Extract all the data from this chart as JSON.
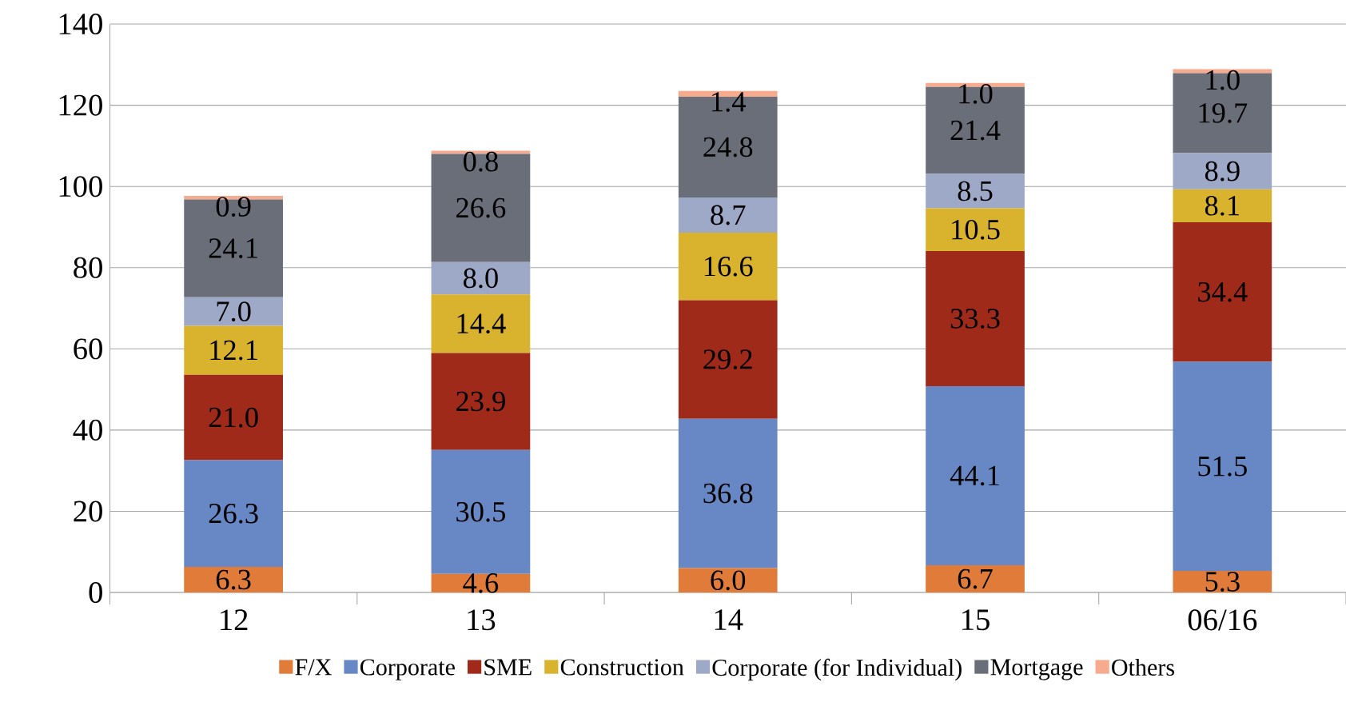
{
  "chart_data": {
    "type": "bar",
    "stacked": true,
    "categories": [
      "12",
      "13",
      "14",
      "15",
      "06/16"
    ],
    "series": [
      {
        "name": "F/X",
        "color": "#e07b39",
        "values": [
          6.3,
          4.6,
          6.0,
          6.7,
          5.3
        ],
        "value_labels": [
          "6.3",
          "4.6",
          "6.0",
          "6.7",
          "5.3"
        ]
      },
      {
        "name": "Corporate",
        "color": "#6788c4",
        "values": [
          26.3,
          30.5,
          36.8,
          44.1,
          51.5
        ],
        "value_labels": [
          "26.3",
          "30.5",
          "36.8",
          "44.1",
          "51.5"
        ]
      },
      {
        "name": "SME",
        "color": "#a02a1a",
        "values": [
          21.0,
          23.9,
          29.2,
          33.3,
          34.4
        ],
        "value_labels": [
          "21.0",
          "23.9",
          "29.2",
          "33.3",
          "34.4"
        ]
      },
      {
        "name": "Construction",
        "color": "#d9b22e",
        "values": [
          12.1,
          14.4,
          16.6,
          10.5,
          8.1
        ],
        "value_labels": [
          "12.1",
          "14.4",
          "16.6",
          "10.5",
          "8.1"
        ]
      },
      {
        "name": "Corporate (for Individual)",
        "color": "#9ea9c8",
        "values": [
          7.0,
          8.0,
          8.7,
          8.5,
          8.9
        ],
        "value_labels": [
          "7.0",
          "8.0",
          "8.7",
          "8.5",
          "8.9"
        ]
      },
      {
        "name": "Mortgage",
        "color": "#6a6e78",
        "values": [
          24.1,
          26.6,
          24.8,
          21.4,
          19.7
        ],
        "value_labels": [
          "24.1",
          "26.6",
          "24.8",
          "21.4",
          "19.7"
        ]
      },
      {
        "name": "Others",
        "color": "#f6ab8f",
        "values": [
          0.9,
          0.8,
          1.4,
          1.0,
          1.0
        ],
        "value_labels": [
          "0.9",
          "0.8",
          "1.4",
          "1.0",
          "1.0"
        ]
      }
    ],
    "ylim": [
      0,
      140
    ],
    "yticks": [
      0,
      20,
      40,
      60,
      80,
      100,
      120,
      140
    ],
    "grid": "y",
    "legend": "bottom"
  }
}
